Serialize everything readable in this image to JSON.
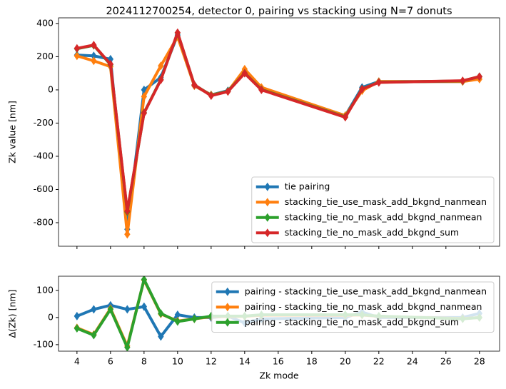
{
  "chart_data": [
    {
      "type": "line",
      "title": "2024112700254, detector 0, pairing vs stacking using N=7 donuts",
      "ylabel": "Zk value [nm]",
      "x": [
        4,
        5,
        6,
        7,
        8,
        9,
        10,
        11,
        12,
        13,
        14,
        15,
        20,
        21,
        22,
        27,
        28
      ],
      "series": [
        {
          "name": "tie pairing",
          "color": "#1f77b4",
          "values": [
            210,
            205,
            185,
            -840,
            0,
            75,
            330,
            25,
            -30,
            -5,
            105,
            10,
            -155,
            15,
            50,
            50,
            80
          ]
        },
        {
          "name": "stacking_tie_use_mask_add_bkgnd_nanmean",
          "color": "#ff7f0e",
          "values": [
            205,
            175,
            140,
            -870,
            -40,
            145,
            320,
            25,
            -30,
            -10,
            125,
            15,
            -155,
            -5,
            50,
            50,
            65
          ]
        },
        {
          "name": "stacking_tie_no_mask_add_bkgnd_nanmean",
          "color": "#2ca02c",
          "values": [
            248,
            268,
            152,
            -735,
            -138,
            62,
            343,
            30,
            -33,
            -8,
            101,
            2,
            -163,
            6,
            46,
            54,
            80
          ]
        },
        {
          "name": "stacking_tie_no_mask_add_bkgnd_sum",
          "color": "#d62728",
          "values": [
            250,
            270,
            155,
            -730,
            -140,
            60,
            345,
            30,
            -35,
            -10,
            100,
            0,
            -165,
            5,
            45,
            55,
            80
          ]
        }
      ],
      "xlim": [
        2.9,
        29.2
      ],
      "ylim": [
        -942,
        434
      ],
      "xticks": [
        4,
        6,
        8,
        10,
        12,
        14,
        16,
        18,
        20,
        22,
        24,
        26,
        28
      ],
      "show_xtick_labels": false,
      "yticks": [
        -800,
        -600,
        -400,
        -200,
        0,
        200,
        400
      ],
      "legend": "lower right"
    },
    {
      "type": "line",
      "xlabel": "Zk mode",
      "ylabel": "Δ(Zk) [nm]",
      "x": [
        4,
        5,
        6,
        7,
        8,
        9,
        10,
        11,
        12,
        13,
        14,
        15,
        20,
        21,
        22,
        27,
        28
      ],
      "series": [
        {
          "name": "pairing -  stacking_tie_use_mask_add_bkgnd_nanmean",
          "color": "#1f77b4",
          "values": [
            5,
            30,
            45,
            30,
            40,
            -70,
            10,
            0,
            0,
            5,
            -20,
            -5,
            0,
            20,
            0,
            0,
            15
          ]
        },
        {
          "name": "pairing -  stacking_tie_no_mask_add_bkgnd_nanmean",
          "color": "#ff7f0e",
          "values": [
            -38,
            -63,
            33,
            -105,
            138,
            13,
            -13,
            -5,
            3,
            3,
            4,
            8,
            8,
            9,
            4,
            -4,
            0
          ]
        },
        {
          "name": "pairing -  stacking_tie_no_mask_add_bkgnd_sum",
          "color": "#2ca02c",
          "values": [
            -40,
            -65,
            30,
            -110,
            140,
            15,
            -15,
            -5,
            5,
            5,
            5,
            10,
            10,
            10,
            5,
            -5,
            0
          ]
        }
      ],
      "xlim": [
        2.9,
        29.2
      ],
      "ylim": [
        -124,
        152
      ],
      "xticks": [
        4,
        6,
        8,
        10,
        12,
        14,
        16,
        18,
        20,
        22,
        24,
        26,
        28
      ],
      "show_xtick_labels": true,
      "yticks": [
        -100,
        0,
        100
      ],
      "legend": "upper right"
    }
  ]
}
